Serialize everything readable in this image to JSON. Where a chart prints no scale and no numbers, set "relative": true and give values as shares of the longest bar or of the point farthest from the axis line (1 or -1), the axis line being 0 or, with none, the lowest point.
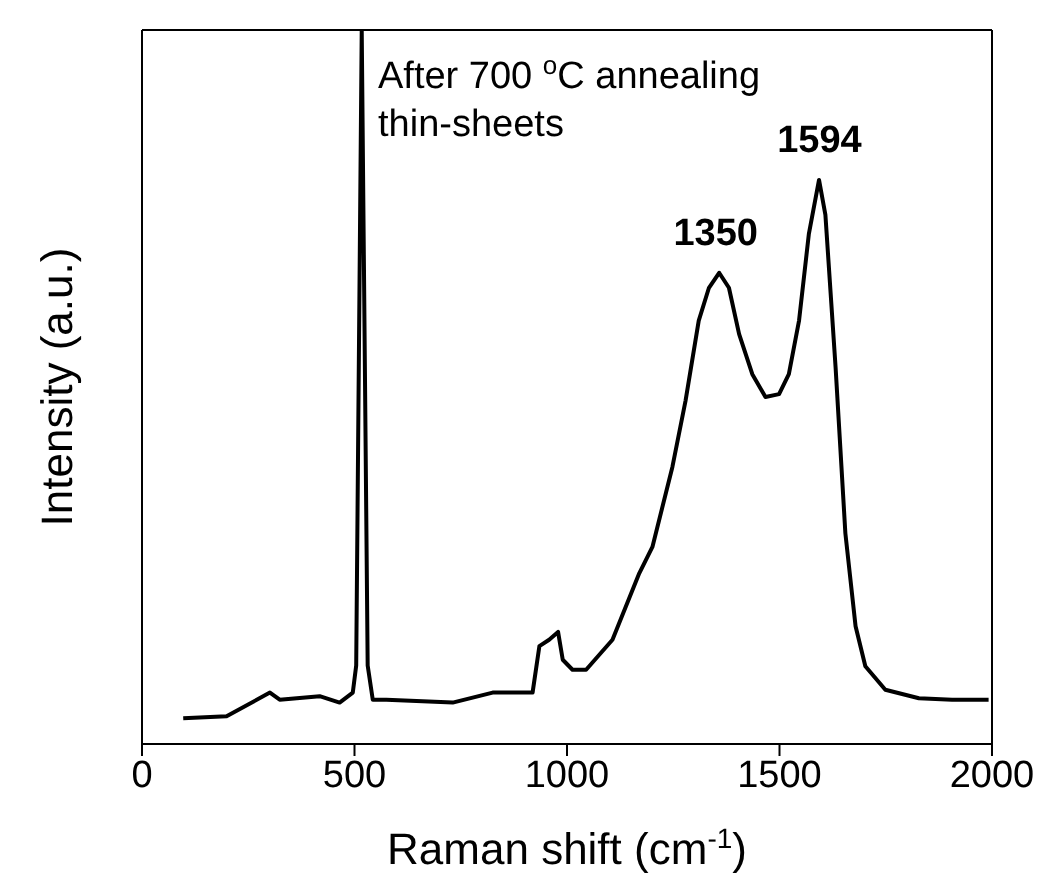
{
  "chart_data": {
    "type": "line",
    "relative": true,
    "xlabel": "Raman shift (cm$^{-1}$)",
    "ylabel": "Intensity (a.u.)",
    "xlim": [
      0,
      2000
    ],
    "xticks": [
      0,
      500,
      1000,
      1500,
      2000
    ],
    "annotations": [
      "After 700 $^{o}$C annealing",
      "thin-sheets",
      {
        "text": "1350",
        "x": 1350,
        "y": 0.66
      },
      {
        "text": "1594",
        "x": 1594,
        "y": 0.79
      }
    ],
    "series": [
      {
        "color": "#000000",
        "x": [
          97,
          199,
          301,
          324,
          418,
          465,
          496,
          504,
          517,
          531,
          543,
          575,
          731,
          825,
          919,
          935,
          958,
          979,
          990,
          1013,
          1045,
          1107,
          1170,
          1201,
          1248,
          1279,
          1310,
          1334,
          1358,
          1381,
          1405,
          1436,
          1467,
          1499,
          1522,
          1546,
          1569,
          1593,
          1608,
          1632,
          1655,
          1679,
          1702,
          1749,
          1828,
          1906,
          1992
        ],
        "values": [
          0.036,
          0.039,
          0.072,
          0.062,
          0.067,
          0.058,
          0.072,
          0.11,
          1,
          0.11,
          0.062,
          0.062,
          0.058,
          0.072,
          0.072,
          0.137,
          0.146,
          0.157,
          0.118,
          0.104,
          0.104,
          0.146,
          0.239,
          0.276,
          0.388,
          0.481,
          0.593,
          0.639,
          0.66,
          0.639,
          0.574,
          0.518,
          0.486,
          0.49,
          0.518,
          0.593,
          0.714,
          0.79,
          0.741,
          0.527,
          0.295,
          0.165,
          0.109,
          0.076,
          0.064,
          0.062,
          0.062
        ]
      }
    ]
  }
}
